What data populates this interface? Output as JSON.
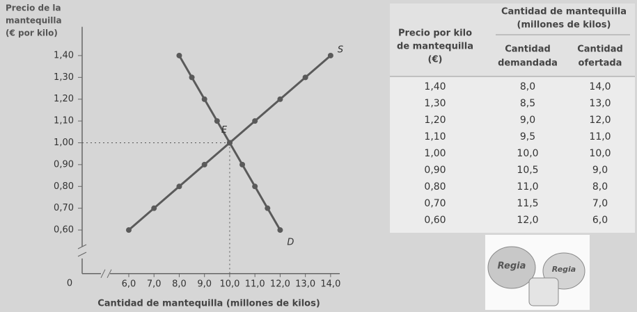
{
  "chart_data": {
    "type": "line",
    "y_label": [
      "Precio de la",
      "mantequilla",
      "(€ por kilo)"
    ],
    "x_label": "Cantidad de mantequilla (millones de kilos)",
    "origin_label": "0",
    "xlim": [
      4,
      14.5
    ],
    "ylim": [
      0.4,
      1.5
    ],
    "xticks": [
      {
        "value": 6,
        "label": "6,0"
      },
      {
        "value": 7,
        "label": "7,0"
      },
      {
        "value": 8,
        "label": "8,0"
      },
      {
        "value": 9,
        "label": "9,0"
      },
      {
        "value": 10,
        "label": "10,0"
      },
      {
        "value": 11,
        "label": "11,0"
      },
      {
        "value": 12,
        "label": "12,0"
      },
      {
        "value": 13,
        "label": "13,0"
      },
      {
        "value": 14,
        "label": "14,0"
      }
    ],
    "yticks": [
      {
        "value": 0.6,
        "label": "0,60"
      },
      {
        "value": 0.7,
        "label": "0,70"
      },
      {
        "value": 0.8,
        "label": "0,80"
      },
      {
        "value": 0.9,
        "label": "0,90"
      },
      {
        "value": 1.0,
        "label": "1,00"
      },
      {
        "value": 1.1,
        "label": "1,10"
      },
      {
        "value": 1.2,
        "label": "1,20"
      },
      {
        "value": 1.3,
        "label": "1,30"
      },
      {
        "value": 1.4,
        "label": "1,40"
      }
    ],
    "series": [
      {
        "name": "S",
        "color": "#5a5a5a",
        "x": [
          6,
          7,
          8,
          9,
          10,
          11,
          12,
          13,
          14
        ],
        "values": [
          0.6,
          0.7,
          0.8,
          0.9,
          1.0,
          1.1,
          1.2,
          1.3,
          1.4
        ]
      },
      {
        "name": "D",
        "color": "#5a5a5a",
        "x": [
          8,
          8.5,
          9,
          9.5,
          10,
          10.5,
          11,
          11.5,
          12
        ],
        "values": [
          1.4,
          1.3,
          1.2,
          1.1,
          1.0,
          0.9,
          0.8,
          0.7,
          0.6
        ]
      }
    ],
    "equilibrium_label": "E"
  },
  "table": {
    "price_header": [
      "Precio por kilo",
      "de mantequilla",
      "(€)"
    ],
    "group_header": [
      "Cantidad de mantequilla",
      "(millones de kilos)"
    ],
    "demand_header": [
      "Cantidad",
      "demandada"
    ],
    "supply_header": [
      "Cantidad",
      "ofertada"
    ],
    "rows": [
      [
        "1,40",
        "8,0",
        "14,0"
      ],
      [
        "1,30",
        "8,5",
        "13,0"
      ],
      [
        "1,20",
        "9,0",
        "12,0"
      ],
      [
        "1,10",
        "9,5",
        "11,0"
      ],
      [
        "1,00",
        "10,0",
        "10,0"
      ],
      [
        "0,90",
        "10,5",
        "9,0"
      ],
      [
        "0,80",
        "11,0",
        "8,0"
      ],
      [
        "0,70",
        "11,5",
        "7,0"
      ],
      [
        "0,60",
        "12,0",
        "6,0"
      ]
    ]
  },
  "product_image": {
    "brand": "Regia"
  }
}
